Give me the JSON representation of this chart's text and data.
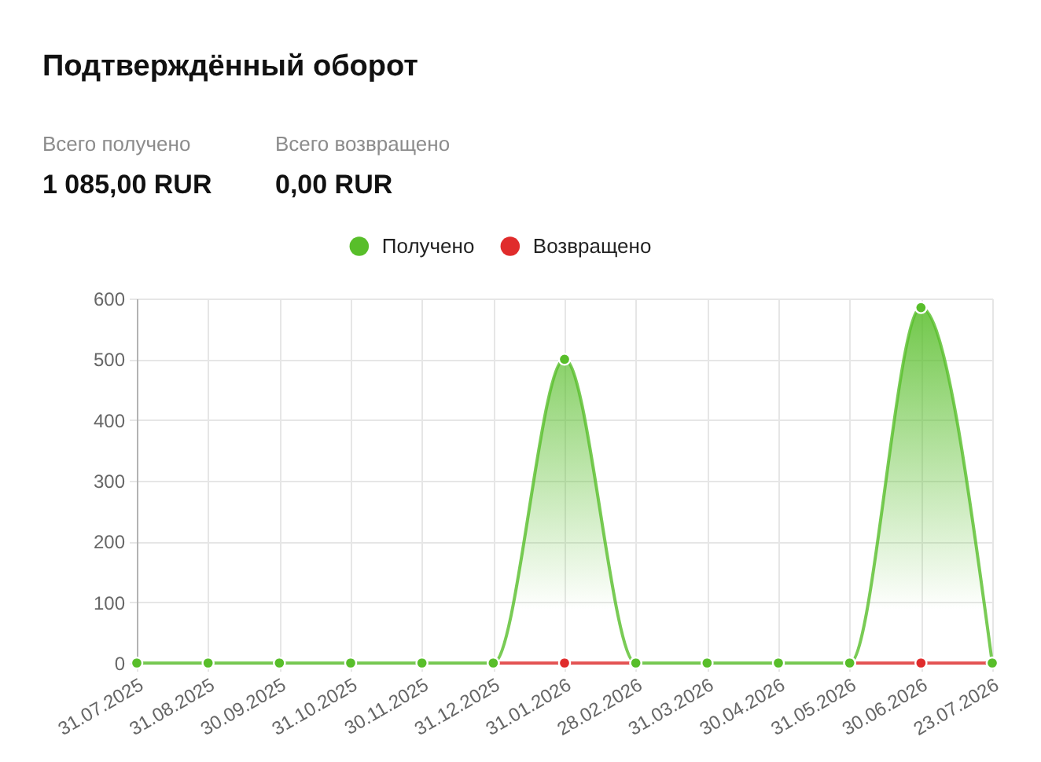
{
  "chart_data": {
    "type": "line",
    "title": "Подтверждённый оборот",
    "annotations": [
      "Всего получено",
      "1 085,00 RUR",
      "Всего возвращено",
      "0,00 RUR"
    ],
    "categories": [
      "31.07.2025",
      "31.08.2025",
      "30.09.2025",
      "31.10.2025",
      "30.11.2025",
      "31.12.2025",
      "31.01.2026",
      "28.02.2026",
      "31.03.2026",
      "30.04.2026",
      "31.05.2026",
      "30.06.2026",
      "23.07.2026"
    ],
    "series": [
      {
        "name": "Получено",
        "type": "area",
        "color": "#58be2a",
        "values": [
          0,
          0,
          0,
          0,
          0,
          0,
          500,
          0,
          0,
          0,
          0,
          585,
          0
        ]
      },
      {
        "name": "Возвращено",
        "color": "#e02c2c",
        "values": [
          null,
          null,
          null,
          null,
          null,
          0,
          0,
          0,
          null,
          null,
          0,
          0,
          0
        ]
      }
    ],
    "ylim": [
      0,
      600
    ],
    "yticks": [
      0,
      100,
      200,
      300,
      400,
      500,
      600
    ],
    "grid": true,
    "legend": "top",
    "marker": "circle"
  }
}
